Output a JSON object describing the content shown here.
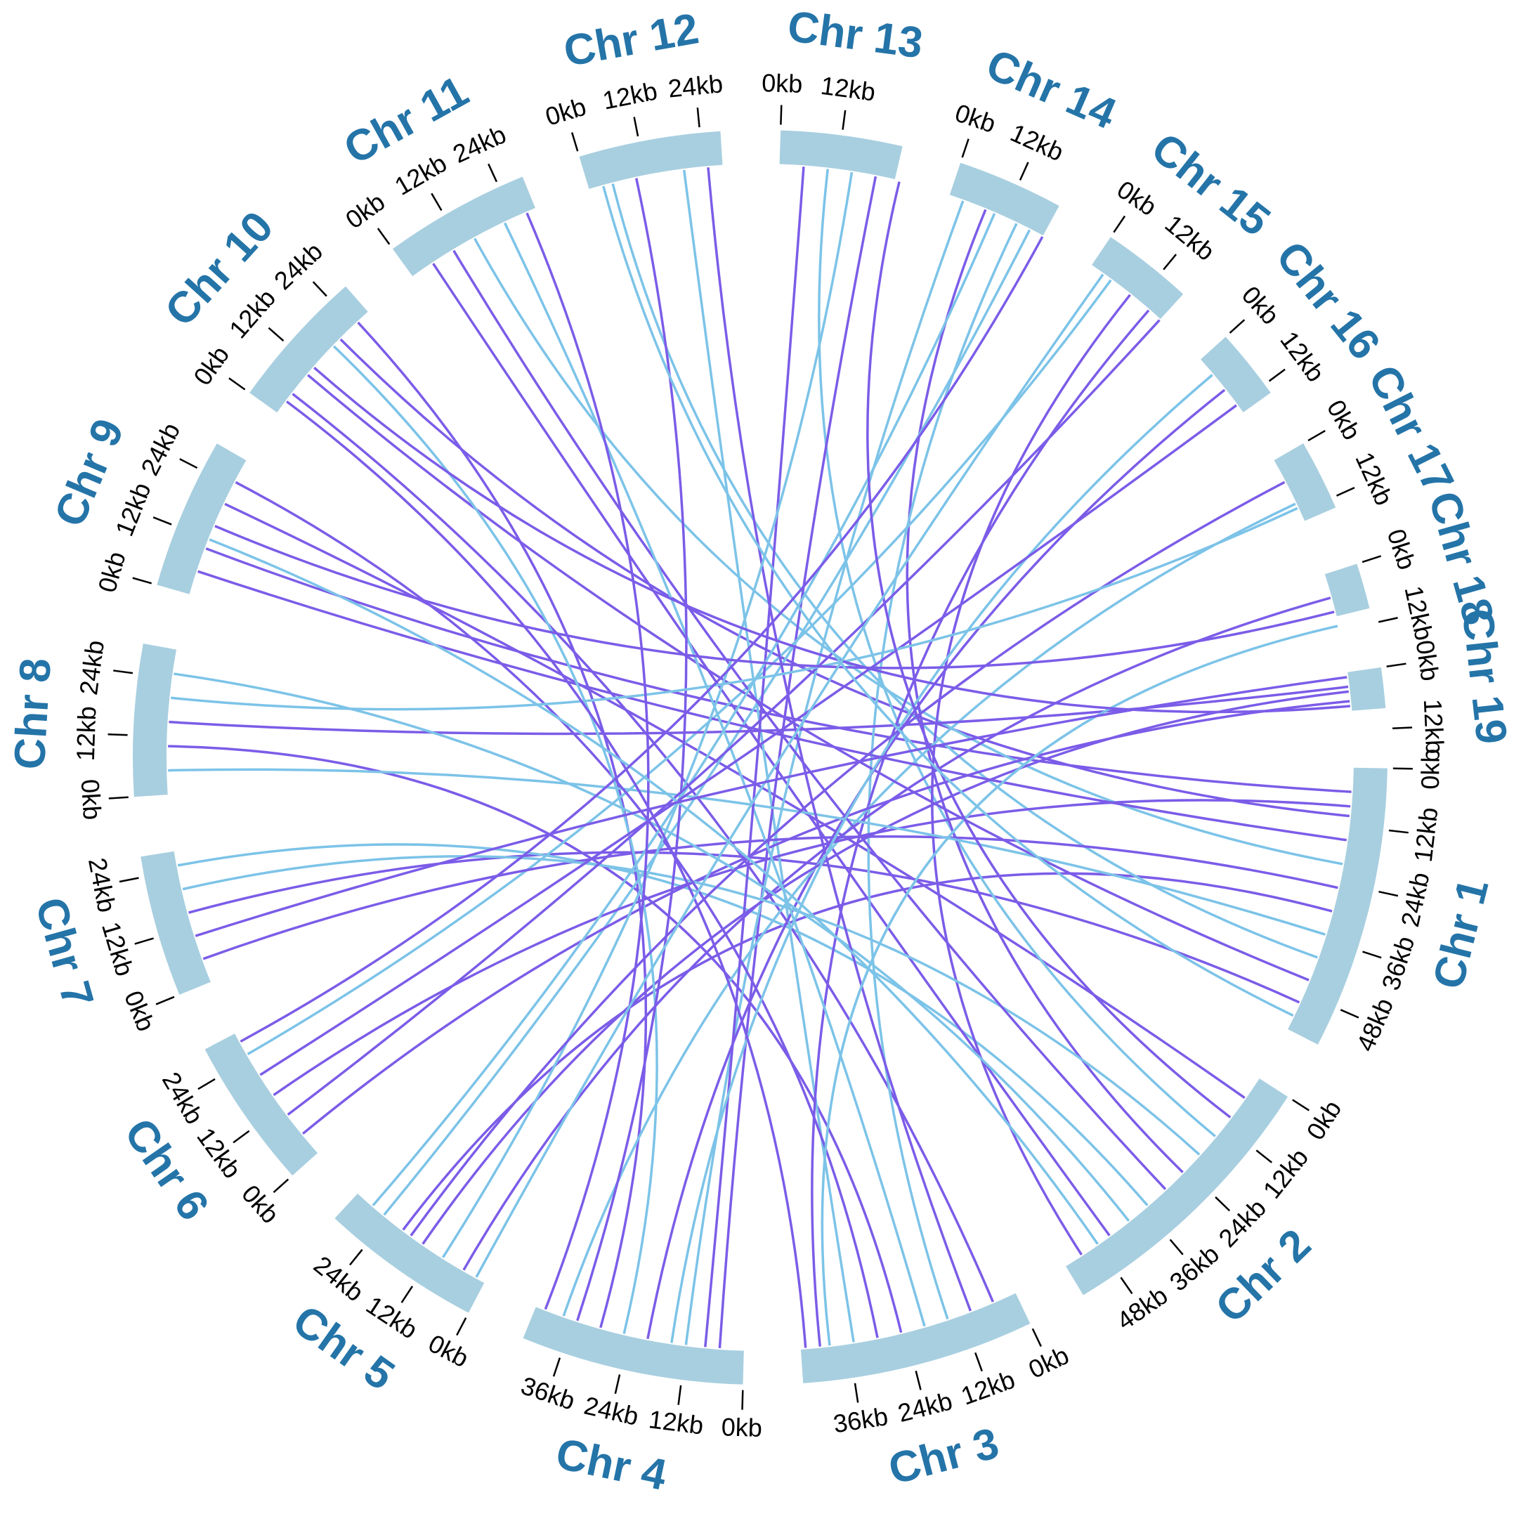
{
  "chart_data": {
    "type": "chord",
    "bar_color": "#a8cfe0",
    "label_color": "#2474a8",
    "chromosomes": [
      {
        "label": "Chr 1",
        "length": 56,
        "ticks": [
          {
            "value": 0,
            "label": "0kb"
          },
          {
            "value": 12,
            "label": "12kb"
          },
          {
            "value": 24,
            "label": "24kb"
          },
          {
            "value": 36,
            "label": "36kb"
          },
          {
            "value": 48,
            "label": "48kb"
          }
        ]
      },
      {
        "label": "Chr 2",
        "length": 56,
        "ticks": [
          {
            "value": 0,
            "label": "0kb"
          },
          {
            "value": 12,
            "label": "12kb"
          },
          {
            "value": 24,
            "label": "24kb"
          },
          {
            "value": 36,
            "label": "36kb"
          },
          {
            "value": 48,
            "label": "48kb"
          }
        ]
      },
      {
        "label": "Chr 3",
        "length": 46,
        "ticks": [
          {
            "value": 0,
            "label": "0kb"
          },
          {
            "value": 12,
            "label": "12kb"
          },
          {
            "value": 24,
            "label": "24kb"
          },
          {
            "value": 36,
            "label": "36kb"
          }
        ]
      },
      {
        "label": "Chr 4",
        "length": 44,
        "ticks": [
          {
            "value": 0,
            "label": "0kb"
          },
          {
            "value": 12,
            "label": "12kb"
          },
          {
            "value": 24,
            "label": "24kb"
          },
          {
            "value": 36,
            "label": "36kb"
          }
        ]
      },
      {
        "label": "Chr 5",
        "length": 32,
        "ticks": [
          {
            "value": 0,
            "label": "0kb"
          },
          {
            "value": 12,
            "label": "12kb"
          },
          {
            "value": 24,
            "label": "24kb"
          }
        ]
      },
      {
        "label": "Chr 6",
        "length": 30,
        "ticks": [
          {
            "value": 0,
            "label": "0kb"
          },
          {
            "value": 12,
            "label": "12kb"
          },
          {
            "value": 24,
            "label": "24kb"
          }
        ]
      },
      {
        "label": "Chr 7",
        "length": 28,
        "ticks": [
          {
            "value": 0,
            "label": "0kb"
          },
          {
            "value": 12,
            "label": "12kb"
          },
          {
            "value": 24,
            "label": "24kb"
          }
        ]
      },
      {
        "label": "Chr 8",
        "length": 30,
        "ticks": [
          {
            "value": 0,
            "label": "0kb"
          },
          {
            "value": 12,
            "label": "12kb"
          },
          {
            "value": 24,
            "label": "24kb"
          }
        ]
      },
      {
        "label": "Chr 9",
        "length": 30,
        "ticks": [
          {
            "value": 0,
            "label": "0kb"
          },
          {
            "value": 12,
            "label": "12kb"
          },
          {
            "value": 24,
            "label": "24kb"
          }
        ]
      },
      {
        "label": "Chr 10",
        "length": 28,
        "ticks": [
          {
            "value": 0,
            "label": "0kb"
          },
          {
            "value": 12,
            "label": "12kb"
          },
          {
            "value": 24,
            "label": "24kb"
          }
        ]
      },
      {
        "label": "Chr 11",
        "length": 29,
        "ticks": [
          {
            "value": 0,
            "label": "0kb"
          },
          {
            "value": 12,
            "label": "12kb"
          },
          {
            "value": 24,
            "label": "24kb"
          }
        ]
      },
      {
        "label": "Chr 12",
        "length": 28,
        "ticks": [
          {
            "value": 0,
            "label": "0kb"
          },
          {
            "value": 12,
            "label": "12kb"
          },
          {
            "value": 24,
            "label": "24kb"
          }
        ]
      },
      {
        "label": "Chr 13",
        "length": 24,
        "ticks": [
          {
            "value": 0,
            "label": "0kb"
          },
          {
            "value": 12,
            "label": "12kb"
          }
        ]
      },
      {
        "label": "Chr 14",
        "length": 21,
        "ticks": [
          {
            "value": 0,
            "label": "0kb"
          },
          {
            "value": 12,
            "label": "12kb"
          }
        ]
      },
      {
        "label": "Chr 15",
        "length": 18,
        "ticks": [
          {
            "value": 0,
            "label": "0kb"
          },
          {
            "value": 12,
            "label": "12kb"
          }
        ]
      },
      {
        "label": "Chr 16",
        "length": 14,
        "ticks": [
          {
            "value": 0,
            "label": "0kb"
          },
          {
            "value": 12,
            "label": "12kb"
          }
        ]
      },
      {
        "label": "Chr 17",
        "length": 14,
        "ticks": [
          {
            "value": 0,
            "label": "0kb"
          },
          {
            "value": 12,
            "label": "12kb"
          }
        ]
      },
      {
        "label": "Chr 18",
        "length": 9,
        "ticks": [
          {
            "value": 0,
            "label": "0kb"
          },
          {
            "value": 12,
            "label": "12kb"
          }
        ]
      },
      {
        "label": "Chr 19",
        "length": 8,
        "ticks": [
          {
            "value": 0,
            "label": "0kb"
          },
          {
            "value": 12,
            "label": "12kb"
          }
        ]
      }
    ],
    "links": [
      {
        "source": [
          0,
          5
        ],
        "target": [
          8,
          10
        ],
        "color": "#7b5ce8"
      },
      {
        "source": [
          0,
          10
        ],
        "target": [
          9,
          20
        ],
        "color": "#7b5ce8"
      },
      {
        "source": [
          0,
          20
        ],
        "target": [
          10,
          15
        ],
        "color": "#7cc3e8"
      },
      {
        "source": [
          0,
          30
        ],
        "target": [
          4,
          20
        ],
        "color": "#7b5ce8"
      },
      {
        "source": [
          0,
          40
        ],
        "target": [
          11,
          5
        ],
        "color": "#7cc3e8"
      },
      {
        "source": [
          0,
          50
        ],
        "target": [
          6,
          15
        ],
        "color": "#7b5ce8"
      },
      {
        "source": [
          1,
          5
        ],
        "target": [
          8,
          20
        ],
        "color": "#7b5ce8"
      },
      {
        "source": [
          1,
          15
        ],
        "target": [
          12,
          10
        ],
        "color": "#7cc3e8"
      },
      {
        "source": [
          1,
          25
        ],
        "target": [
          13,
          8
        ],
        "color": "#7b5ce8"
      },
      {
        "source": [
          1,
          35
        ],
        "target": [
          6,
          25
        ],
        "color": "#7cc3e8"
      },
      {
        "source": [
          1,
          45
        ],
        "target": [
          10,
          5
        ],
        "color": "#7b5ce8"
      },
      {
        "source": [
          1,
          52
        ],
        "target": [
          14,
          10
        ],
        "color": "#7b5ce8"
      },
      {
        "source": [
          2,
          5
        ],
        "target": [
          9,
          5
        ],
        "color": "#7b5ce8"
      },
      {
        "source": [
          2,
          15
        ],
        "target": [
          13,
          15
        ],
        "color": "#7cc3e8"
      },
      {
        "source": [
          2,
          25
        ],
        "target": [
          7,
          10
        ],
        "color": "#7b5ce8"
      },
      {
        "source": [
          2,
          35
        ],
        "target": [
          11,
          20
        ],
        "color": "#7cc3e8"
      },
      {
        "source": [
          2,
          42
        ],
        "target": [
          14,
          15
        ],
        "color": "#7b5ce8"
      },
      {
        "source": [
          3,
          5
        ],
        "target": [
          12,
          20
        ],
        "color": "#7b5ce8"
      },
      {
        "source": [
          3,
          12
        ],
        "target": [
          13,
          3
        ],
        "color": "#7cc3e8"
      },
      {
        "source": [
          3,
          20
        ],
        "target": [
          15,
          8
        ],
        "color": "#7b5ce8"
      },
      {
        "source": [
          3,
          30
        ],
        "target": [
          9,
          25
        ],
        "color": "#7b5ce8"
      },
      {
        "source": [
          3,
          38
        ],
        "target": [
          16,
          10
        ],
        "color": "#7cc3e8"
      },
      {
        "source": [
          4,
          5
        ],
        "target": [
          17,
          5
        ],
        "color": "#7b5ce8"
      },
      {
        "source": [
          4,
          15
        ],
        "target": [
          18,
          4
        ],
        "color": "#7b5ce8"
      },
      {
        "source": [
          4,
          25
        ],
        "target": [
          13,
          18
        ],
        "color": "#7cc3e8"
      },
      {
        "source": [
          5,
          5
        ],
        "target": [
          18,
          6
        ],
        "color": "#7b5ce8"
      },
      {
        "source": [
          5,
          15
        ],
        "target": [
          0,
          8
        ],
        "color": "#7b5ce8"
      },
      {
        "source": [
          5,
          25
        ],
        "target": [
          14,
          5
        ],
        "color": "#7cc3e8"
      },
      {
        "source": [
          6,
          5
        ],
        "target": [
          0,
          25
        ],
        "color": "#7b5ce8"
      },
      {
        "source": [
          6,
          20
        ],
        "target": [
          1,
          20
        ],
        "color": "#7cc3e8"
      },
      {
        "source": [
          7,
          5
        ],
        "target": [
          0,
          35
        ],
        "color": "#7cc3e8"
      },
      {
        "source": [
          7,
          15
        ],
        "target": [
          18,
          3
        ],
        "color": "#7b5ce8"
      },
      {
        "source": [
          7,
          25
        ],
        "target": [
          1,
          40
        ],
        "color": "#7cc3e8"
      },
      {
        "source": [
          8,
          5
        ],
        "target": [
          0,
          15
        ],
        "color": "#7b5ce8"
      },
      {
        "source": [
          8,
          25
        ],
        "target": [
          2,
          30
        ],
        "color": "#7b5ce8"
      },
      {
        "source": [
          9,
          10
        ],
        "target": [
          0,
          45
        ],
        "color": "#7b5ce8"
      },
      {
        "source": [
          9,
          18
        ],
        "target": [
          3,
          25
        ],
        "color": "#7cc3e8"
      },
      {
        "source": [
          10,
          10
        ],
        "target": [
          1,
          30
        ],
        "color": "#7b5ce8"
      },
      {
        "source": [
          10,
          22
        ],
        "target": [
          2,
          20
        ],
        "color": "#7cc3e8"
      },
      {
        "source": [
          11,
          10
        ],
        "target": [
          3,
          35
        ],
        "color": "#7b5ce8"
      },
      {
        "source": [
          11,
          25
        ],
        "target": [
          2,
          10
        ],
        "color": "#7b5ce8"
      },
      {
        "source": [
          12,
          5
        ],
        "target": [
          3,
          8
        ],
        "color": "#7b5ce8"
      },
      {
        "source": [
          12,
          15
        ],
        "target": [
          4,
          10
        ],
        "color": "#7cc3e8"
      },
      {
        "source": [
          13,
          10
        ],
        "target": [
          4,
          28
        ],
        "color": "#7cc3e8"
      },
      {
        "source": [
          14,
          18
        ],
        "target": [
          5,
          10
        ],
        "color": "#7b5ce8"
      },
      {
        "source": [
          15,
          4
        ],
        "target": [
          3,
          15
        ],
        "color": "#7cc3e8"
      },
      {
        "source": [
          15,
          12
        ],
        "target": [
          5,
          20
        ],
        "color": "#7b5ce8"
      },
      {
        "source": [
          16,
          5
        ],
        "target": [
          4,
          18
        ],
        "color": "#7b5ce8"
      },
      {
        "source": [
          16,
          11
        ],
        "target": [
          7,
          20
        ],
        "color": "#7cc3e8"
      },
      {
        "source": [
          17,
          8
        ],
        "target": [
          8,
          15
        ],
        "color": "#7b5ce8"
      },
      {
        "source": [
          17,
          11
        ],
        "target": [
          2,
          40
        ],
        "color": "#7cc3e8"
      },
      {
        "source": [
          18,
          7
        ],
        "target": [
          9,
          12
        ],
        "color": "#7b5ce8"
      },
      {
        "source": [
          12,
          25
        ],
        "target": [
          1,
          10
        ],
        "color": "#7b5ce8"
      },
      {
        "source": [
          11,
          3
        ],
        "target": [
          0,
          53
        ],
        "color": "#7cc3e8"
      },
      {
        "source": [
          10,
          27
        ],
        "target": [
          3,
          42
        ],
        "color": "#7b5ce8"
      },
      {
        "source": [
          9,
          3
        ],
        "target": [
          2,
          45
        ],
        "color": "#7b5ce8"
      },
      {
        "source": [
          8,
          12
        ],
        "target": [
          1,
          48
        ],
        "color": "#7cc3e8"
      },
      {
        "source": [
          13,
          21
        ],
        "target": [
          5,
          28
        ],
        "color": "#7b5ce8"
      },
      {
        "source": [
          14,
          3
        ],
        "target": [
          4,
          2
        ],
        "color": "#7cc3e8"
      },
      {
        "source": [
          6,
          10
        ],
        "target": [
          18,
          1
        ],
        "color": "#7b5ce8"
      }
    ]
  }
}
